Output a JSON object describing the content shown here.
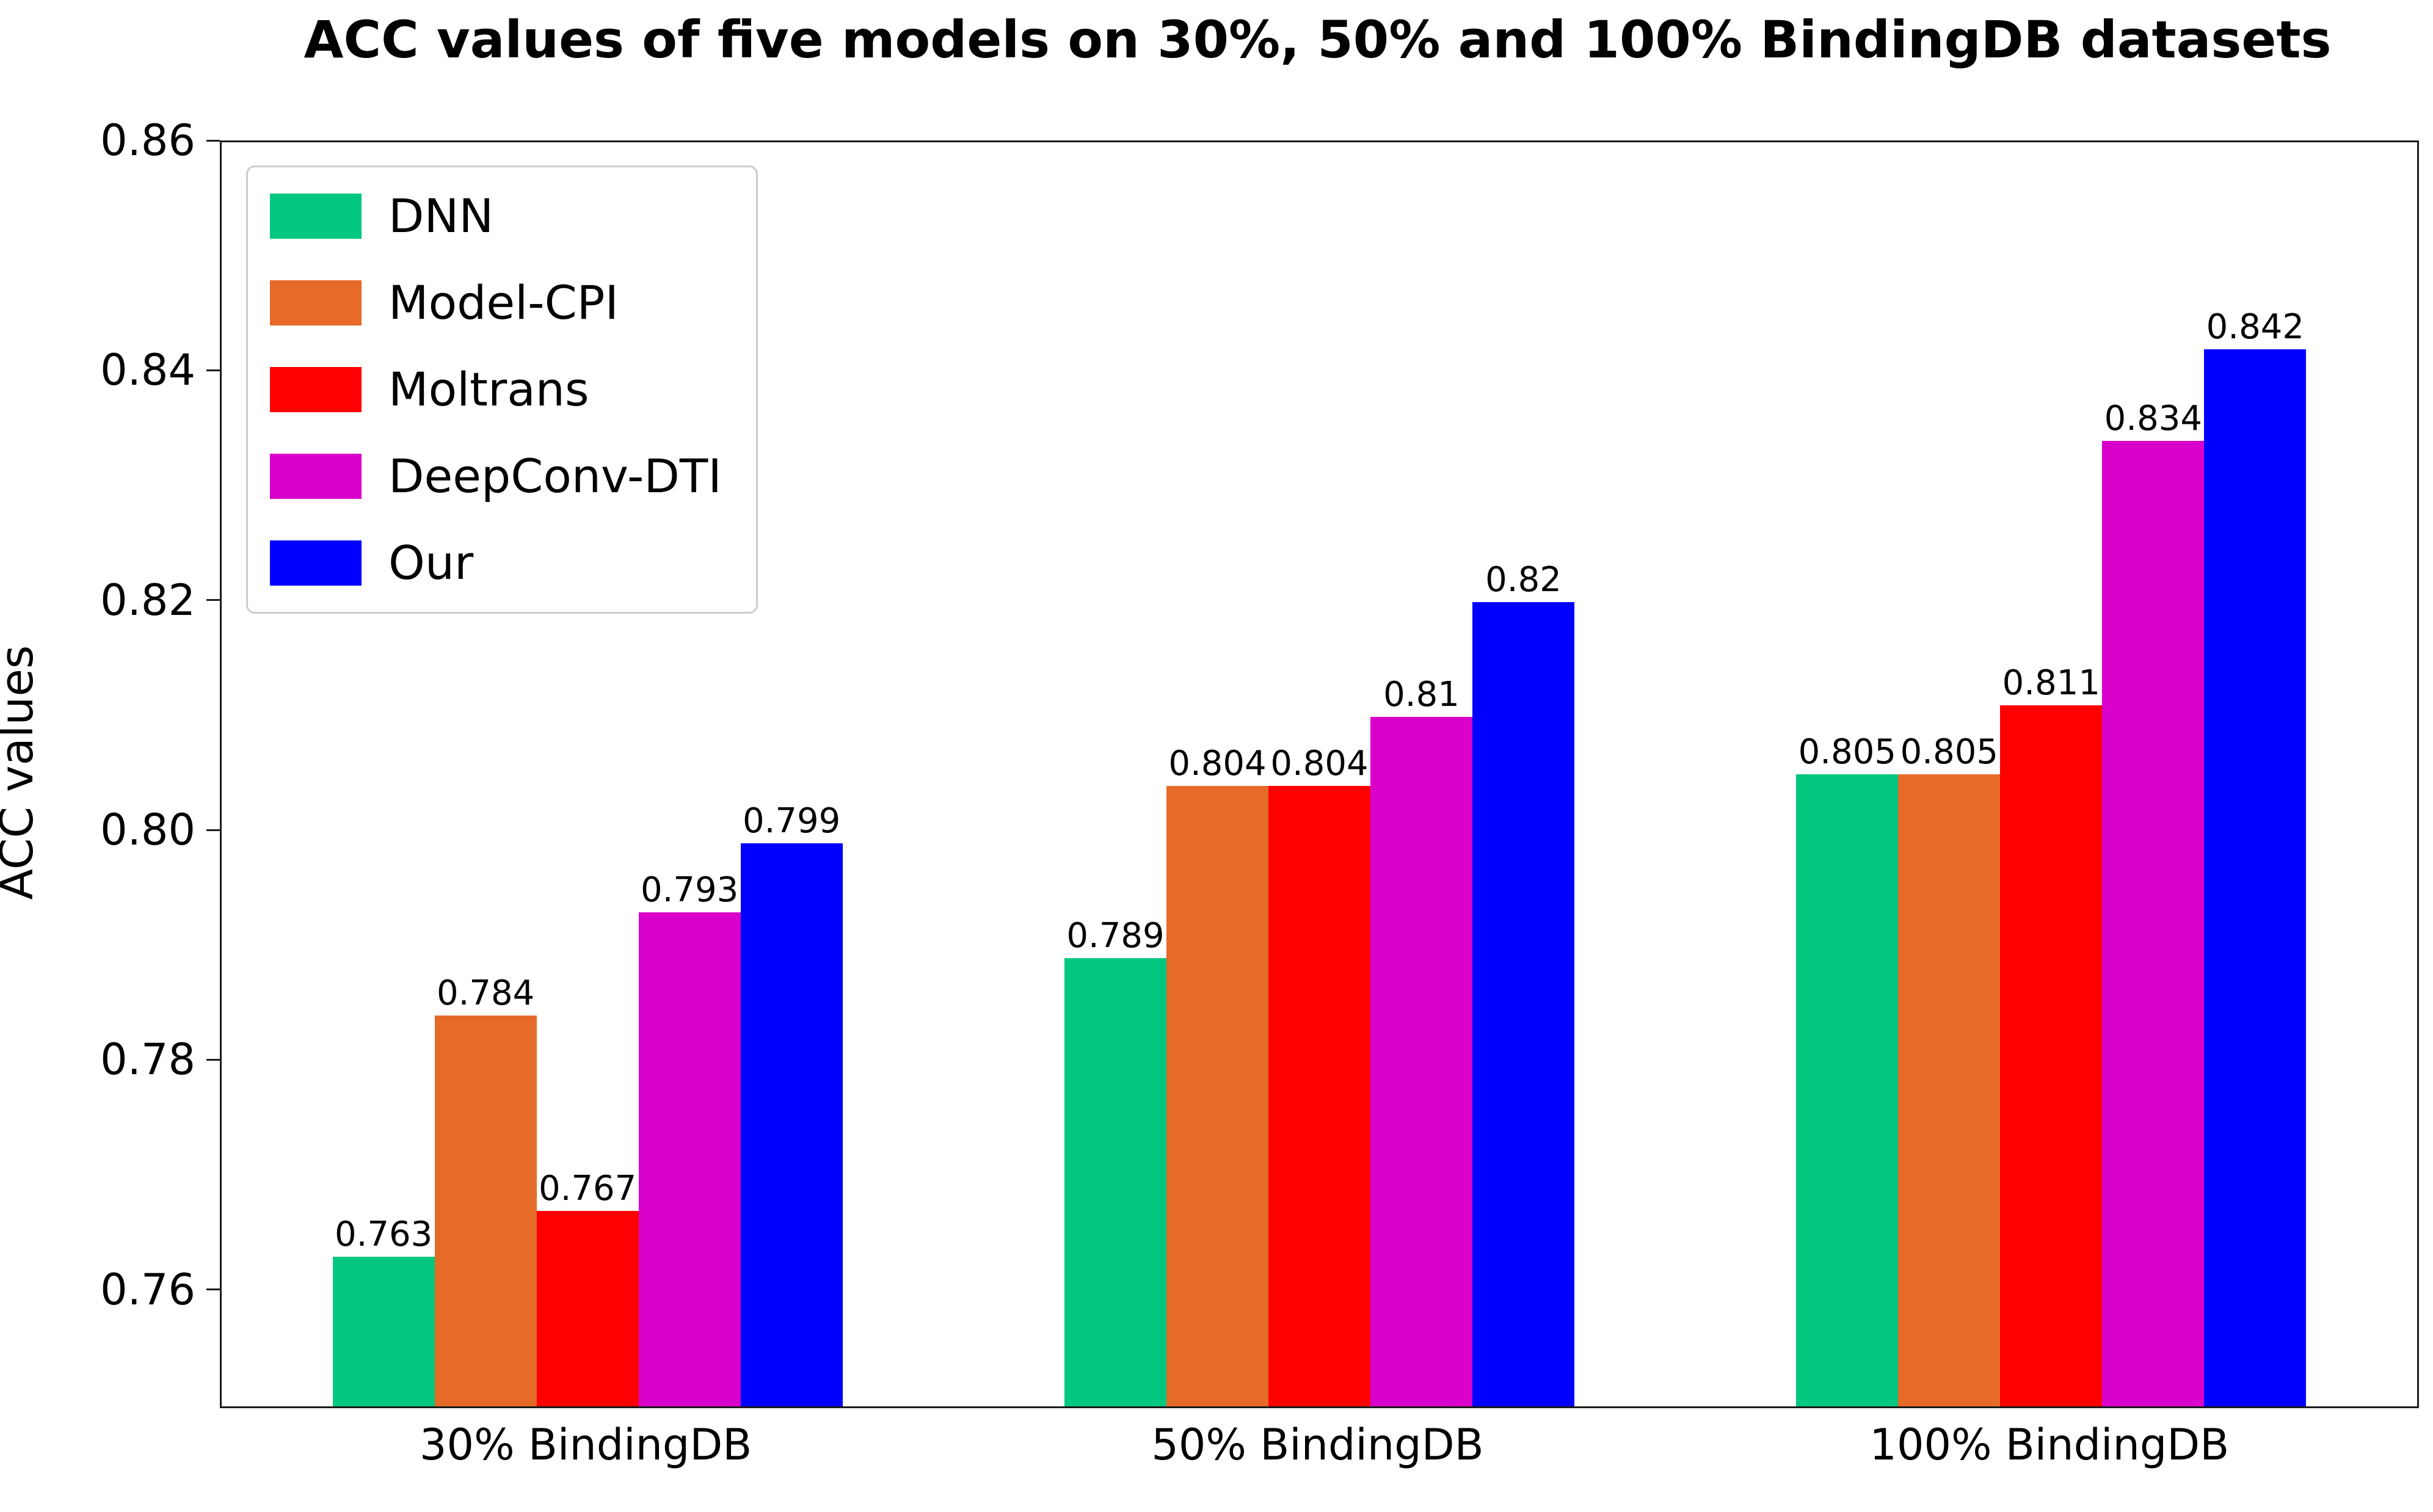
{
  "chart_data": {
    "type": "bar",
    "title": "ACC values of five models on 30%, 50% and 100% BindingDB datasets",
    "xlabel": "",
    "ylabel": "ACC values",
    "categories": [
      "30% BindingDB",
      "50% BindingDB",
      "100% BindingDB"
    ],
    "series": [
      {
        "name": "DNN",
        "color": "#01C87E",
        "values": [
          0.763,
          0.789,
          0.805
        ],
        "labels": [
          "0.763",
          "0.789",
          "0.805"
        ]
      },
      {
        "name": "Model-CPI",
        "color": "#E66A28",
        "values": [
          0.784,
          0.804,
          0.805
        ],
        "labels": [
          "0.784",
          "0.804",
          "0.805"
        ]
      },
      {
        "name": "Moltrans",
        "color": "#FF0000",
        "values": [
          0.767,
          0.804,
          0.811
        ],
        "labels": [
          "0.767",
          "0.804",
          "0.811"
        ]
      },
      {
        "name": "DeepConv-DTI",
        "color": "#D900CB",
        "values": [
          0.793,
          0.81,
          0.834
        ],
        "labels": [
          "0.793",
          "0.81",
          "0.834"
        ]
      },
      {
        "name": "Our",
        "color": "#0000FF",
        "values": [
          0.799,
          0.82,
          0.842
        ],
        "labels": [
          "0.799",
          "0.82",
          "0.842"
        ]
      }
    ],
    "ylim": [
      0.75,
      0.86
    ],
    "yticks": [
      "0.76",
      "0.78",
      "0.80",
      "0.82",
      "0.84",
      "0.86"
    ],
    "grid": false,
    "legend_position": "upper left",
    "bar_value_labels": true
  },
  "colors": {
    "spine": "#1a1a1a",
    "legend_border": "#cccccc",
    "text": "#000000",
    "background": "#ffffff"
  }
}
